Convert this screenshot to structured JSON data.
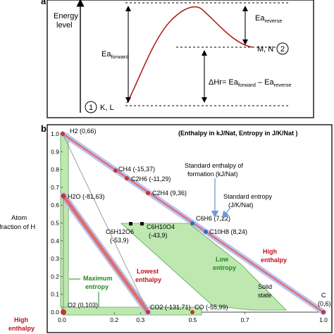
{
  "panel_a": {
    "letter": "a",
    "y_label_line1": "Energy",
    "y_label_line2": "level",
    "ea_forward_main": "Ea",
    "ea_forward_sub": "forward",
    "ea_reverse_main": "Ea",
    "ea_reverse_sub": "reverse",
    "delta_h_prefix": "ΔHr= Ea",
    "delta_h_sub1": "forward",
    "delta_h_mid": " – Ea",
    "delta_h_sub2": "reverse",
    "reactant_num": "1",
    "reactant_label": "K, L",
    "product_label": "M, N",
    "product_num": "2",
    "colors": {
      "curve": "#b02418",
      "arrow": "#000000"
    }
  },
  "panel_b": {
    "letter": "b",
    "header": "(Enthalpy in kJ/Nat, Entropy in J/K/Nat )",
    "y_axis_title_line1": "Atom",
    "y_axis_title_line2": "fraction of H",
    "y_ticks": [
      "0.0",
      "0.1",
      "0.2",
      "0.3",
      "0.4",
      "0.5",
      "0.6",
      "0.7",
      "0.8",
      "0.9",
      "1.0"
    ],
    "x_ticks": [
      "0.0",
      "0.2",
      "0.3",
      "0.5",
      "0.7",
      "1.0"
    ],
    "region_labels": {
      "maximum_entropy_1": "Maximum",
      "maximum_entropy_2": "entropy",
      "lowest_enthalpy_1": "Lowest",
      "lowest_enthalpy_2": "enthalpy",
      "low_entropy_1": "Low",
      "low_entropy_2": "entropy",
      "solid_state_1": "Solid",
      "solid_state_2": "state",
      "high_enthalpy_right_1": "High",
      "high_enthalpy_right_2": "enthalpy",
      "high_enthalpy_left_1": "High",
      "high_enthalpy_left_2": "enthalpy"
    },
    "legend_notes": {
      "std_enthalpy_1": "Standard enthalpy of",
      "std_enthalpy_2": "formation (kJ/Nat)",
      "std_entropy_1": "Standard entropy",
      "std_entropy_2": "(J/K/Nat)"
    },
    "points": [
      {
        "label": "H2 (0,66)",
        "color": "#c0392b"
      },
      {
        "label": "CH4 (-15,37)",
        "color": "#c0392b"
      },
      {
        "label": "C2H6 (-11,29)",
        "color": "#c0392b"
      },
      {
        "label": "C2H4 (9,36)",
        "color": "#c0392b"
      },
      {
        "label": "C6H6 (7,22)",
        "color": "#2e6fc2"
      },
      {
        "label": "C10H8 (8,24)",
        "color": "#2e6fc2"
      },
      {
        "label": "H2O (-81,63)",
        "color": "#c0392b"
      },
      {
        "label": "C6H12O6",
        "label2": "(-53,9)",
        "color": "#111111"
      },
      {
        "label": "C6H10O4",
        "label2": "(-43,9)",
        "color": "#111111"
      },
      {
        "label": "O2 (0,103)",
        "color": "#c0392b"
      },
      {
        "label": "CO2 (-131,71)",
        "color": "#c0392b"
      },
      {
        "label": "CO (-55,99)",
        "color": "#c0392b"
      },
      {
        "label": "C",
        "label2": "(0,6)",
        "color": "#c0392b"
      }
    ],
    "colors": {
      "red_label": "#c0101a",
      "green_label": "#1f8a1f",
      "green_fill": "#bfe8b0",
      "band_fill": "#b9c3ef",
      "band_core": "#e06d6d",
      "blue_arrow": "#6b9bd8"
    }
  }
}
